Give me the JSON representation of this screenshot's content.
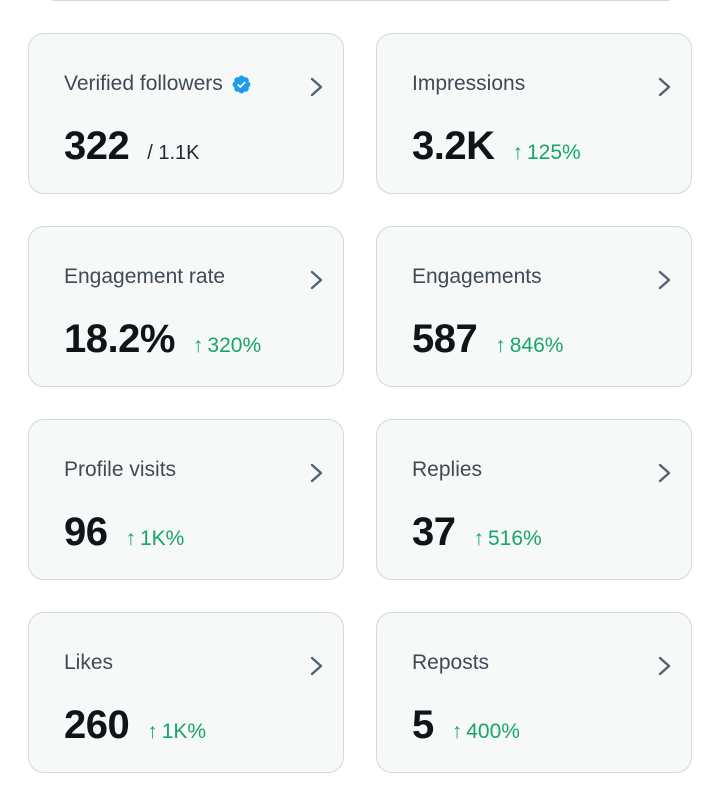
{
  "colors": {
    "card_bg": "#f7f9f9",
    "card_border": "#cfd9de",
    "label": "#3e4a54",
    "value": "#0f1419",
    "positive_change": "#16a56a",
    "verified_badge": "#1d9bf0",
    "chevron": "#536471"
  },
  "icons": {
    "verified": "verified-badge-icon",
    "chevron": "chevron-right-icon",
    "change_arrow": "arrow-up-icon"
  },
  "metrics": [
    {
      "label": "Verified followers",
      "value": "322",
      "sub": "/ 1.1K",
      "verified": true
    },
    {
      "label": "Impressions",
      "value": "3.2K",
      "arrow": "↑",
      "change": "125%"
    },
    {
      "label": "Engagement rate",
      "value": "18.2%",
      "arrow": "↑",
      "change": "320%"
    },
    {
      "label": "Engagements",
      "value": "587",
      "arrow": "↑",
      "change": "846%"
    },
    {
      "label": "Profile visits",
      "value": "96",
      "arrow": "↑",
      "change": "1K%"
    },
    {
      "label": "Replies",
      "value": "37",
      "arrow": "↑",
      "change": "516%"
    },
    {
      "label": "Likes",
      "value": "260",
      "arrow": "↑",
      "change": "1K%"
    },
    {
      "label": "Reposts",
      "value": "5",
      "arrow": "↑",
      "change": "400%"
    }
  ]
}
